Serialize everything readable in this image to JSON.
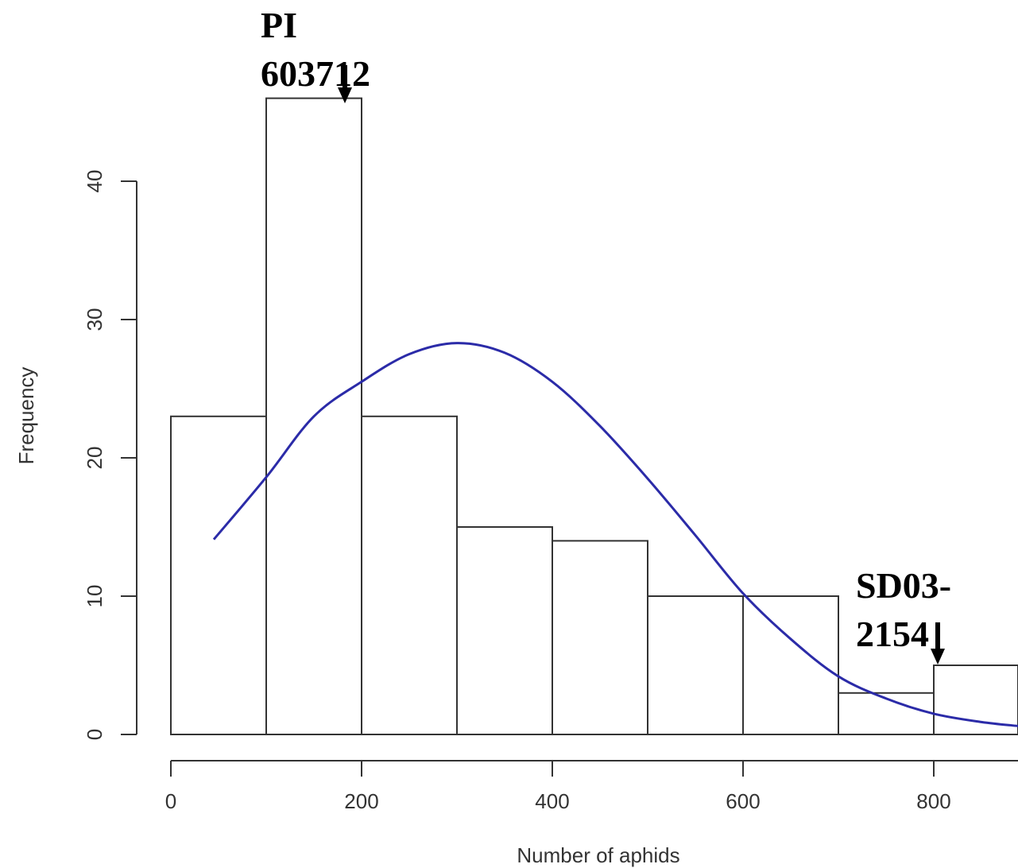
{
  "chart_data": {
    "type": "bar",
    "subtype": "histogram",
    "bins": [
      {
        "start": 0,
        "end": 100,
        "count": 23
      },
      {
        "start": 100,
        "end": 200,
        "count": 46
      },
      {
        "start": 200,
        "end": 300,
        "count": 23
      },
      {
        "start": 300,
        "end": 400,
        "count": 15
      },
      {
        "start": 400,
        "end": 500,
        "count": 14
      },
      {
        "start": 500,
        "end": 600,
        "count": 10
      },
      {
        "start": 600,
        "end": 700,
        "count": 10
      },
      {
        "start": 700,
        "end": 800,
        "count": 3
      },
      {
        "start": 800,
        "end": 900,
        "count": 5
      }
    ],
    "curve": {
      "type": "normal-density",
      "color": "#2b2ba8",
      "points": [
        [
          45,
          14.1
        ],
        [
          100,
          18.6
        ],
        [
          150,
          23.0
        ],
        [
          200,
          25.5
        ],
        [
          250,
          27.5
        ],
        [
          300,
          28.3
        ],
        [
          350,
          27.6
        ],
        [
          400,
          25.5
        ],
        [
          450,
          22.3
        ],
        [
          500,
          18.5
        ],
        [
          550,
          14.4
        ],
        [
          600,
          10.2
        ],
        [
          650,
          6.9
        ],
        [
          700,
          4.2
        ],
        [
          750,
          2.6
        ],
        [
          800,
          1.5
        ],
        [
          850,
          0.9
        ],
        [
          890,
          0.6
        ]
      ]
    },
    "xlabel": "Number of aphids",
    "ylabel": "Frequency",
    "xticks": [
      0,
      200,
      400,
      600,
      800
    ],
    "yticks": [
      0,
      10,
      20,
      30,
      40
    ],
    "xlim": [
      0,
      900
    ],
    "ylim": [
      0,
      46
    ],
    "grid": false,
    "bar_fill": "#ffffff",
    "bar_stroke": "#333333",
    "annotations": [
      {
        "lines": [
          "PI",
          "603712"
        ],
        "x": 180,
        "y": 46
      },
      {
        "lines": [
          "SD03-",
          "2154"
        ],
        "x": 805,
        "y": 5
      }
    ]
  }
}
